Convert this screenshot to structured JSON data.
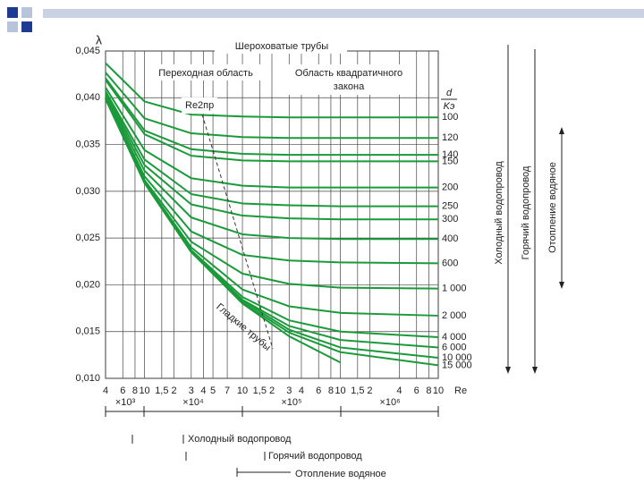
{
  "chart_data": {
    "type": "line",
    "title": "Шероховатые трубы",
    "transition_label": "Переходная область",
    "quadratic_label": [
      "Область квадратичного",
      "закона"
    ],
    "boundary_label": "Re2пр",
    "smooth_label": "Гладкие трубы",
    "y_label": "λ",
    "x_label": "Re",
    "legend_title": [
      "d",
      "Kэ"
    ],
    "multipliers": [
      "×10³",
      "×10⁴",
      "×10⁵",
      "×10⁶"
    ],
    "usage": [
      "Холодный водопровод",
      "Горячий водопровод",
      "Отопление водяное"
    ],
    "log_x": true,
    "grid": true,
    "color": "#1a9a3a",
    "x": [
      4000,
      10000,
      30000,
      100000,
      300000,
      1000000,
      10000000
    ],
    "series": [
      {
        "name": "100",
        "values": [
          0.0437,
          0.0396,
          0.0382,
          0.038,
          0.0379,
          0.0379,
          0.0379
        ]
      },
      {
        "name": "120",
        "values": [
          0.0427,
          0.0378,
          0.0362,
          0.0358,
          0.0357,
          0.0357,
          0.0357
        ]
      },
      {
        "name": "140",
        "values": [
          0.0421,
          0.0365,
          0.0345,
          0.034,
          0.0339,
          0.0339,
          0.0339
        ]
      },
      {
        "name": "150",
        "values": [
          0.0419,
          0.0361,
          0.0338,
          0.0333,
          0.0332,
          0.0332,
          0.0332
        ]
      },
      {
        "name": "200",
        "values": [
          0.0411,
          0.0344,
          0.0314,
          0.0306,
          0.0304,
          0.0304,
          0.0304
        ]
      },
      {
        "name": "250",
        "values": [
          0.0407,
          0.0334,
          0.0297,
          0.0287,
          0.0285,
          0.0284,
          0.0284
        ]
      },
      {
        "name": "300",
        "values": [
          0.0405,
          0.0328,
          0.0286,
          0.0274,
          0.0271,
          0.027,
          0.027
        ]
      },
      {
        "name": "400",
        "values": [
          0.0403,
          0.0322,
          0.0272,
          0.0254,
          0.025,
          0.0249,
          0.0249
        ]
      },
      {
        "name": "600",
        "values": [
          0.0401,
          0.0316,
          0.0257,
          0.0232,
          0.0226,
          0.0224,
          0.0223
        ]
      },
      {
        "name": "1 000",
        "values": [
          0.04,
          0.0312,
          0.0246,
          0.0212,
          0.0201,
          0.0197,
          0.0196
        ]
      },
      {
        "name": "2 000",
        "values": [
          0.04,
          0.031,
          0.024,
          0.0195,
          0.0177,
          0.017,
          0.0167
        ]
      },
      {
        "name": "4 000",
        "values": [
          0.0399,
          0.031,
          0.0237,
          0.0187,
          0.0162,
          0.015,
          0.0144
        ]
      },
      {
        "name": "6 000",
        "values": [
          0.0399,
          0.0309,
          0.0236,
          0.0184,
          0.0156,
          0.0141,
          0.0133
        ]
      },
      {
        "name": "10 000",
        "values": [
          0.0399,
          0.0309,
          0.0235,
          0.0183,
          0.0152,
          0.0133,
          0.0122
        ]
      },
      {
        "name": "15 000",
        "values": [
          0.0399,
          0.0309,
          0.0235,
          0.0181,
          0.0149,
          0.0128,
          0.0114
        ]
      }
    ],
    "smooth_values": [
      0.0399,
      0.0309,
      0.0235,
      0.018,
      0.0145,
      0.0117,
      null
    ],
    "xlim": [
      4000,
      10000000
    ],
    "xticks": [
      {
        "value": 4000,
        "label": "4"
      },
      {
        "value": 6000,
        "label": "6"
      },
      {
        "value": 8000,
        "label": "8"
      },
      {
        "value": 10000,
        "label": "10"
      },
      {
        "value": 15000,
        "label": "1,5"
      },
      {
        "value": 20000,
        "label": "2"
      },
      {
        "value": 30000,
        "label": "3"
      },
      {
        "value": 40000,
        "label": "4"
      },
      {
        "value": 50000,
        "label": "5"
      },
      {
        "value": 70000,
        "label": "7"
      },
      {
        "value": 100000,
        "label": "10"
      },
      {
        "value": 150000,
        "label": "1,5"
      },
      {
        "value": 200000,
        "label": "2"
      },
      {
        "value": 300000,
        "label": "3"
      },
      {
        "value": 400000,
        "label": "4"
      },
      {
        "value": 600000,
        "label": "6"
      },
      {
        "value": 800000,
        "label": "8"
      },
      {
        "value": 1000000,
        "label": "10"
      },
      {
        "value": 1500000,
        "label": "1,5"
      },
      {
        "value": 2000000,
        "label": "2"
      },
      {
        "value": 4000000,
        "label": "4"
      },
      {
        "value": 6000000,
        "label": "6"
      },
      {
        "value": 8000000,
        "label": "8"
      },
      {
        "value": 10000000,
        "label": "10"
      }
    ],
    "ylim": [
      0.01,
      0.045
    ],
    "yticks": [
      {
        "value": 0.01,
        "label": "0,010"
      },
      {
        "value": 0.015,
        "label": "0,015"
      },
      {
        "value": 0.02,
        "label": "0,020"
      },
      {
        "value": 0.025,
        "label": "0,025"
      },
      {
        "value": 0.03,
        "label": "0,030"
      },
      {
        "value": 0.035,
        "label": "0,035"
      },
      {
        "value": 0.04,
        "label": "0,040"
      },
      {
        "value": 0.045,
        "label": "0,045"
      }
    ]
  }
}
